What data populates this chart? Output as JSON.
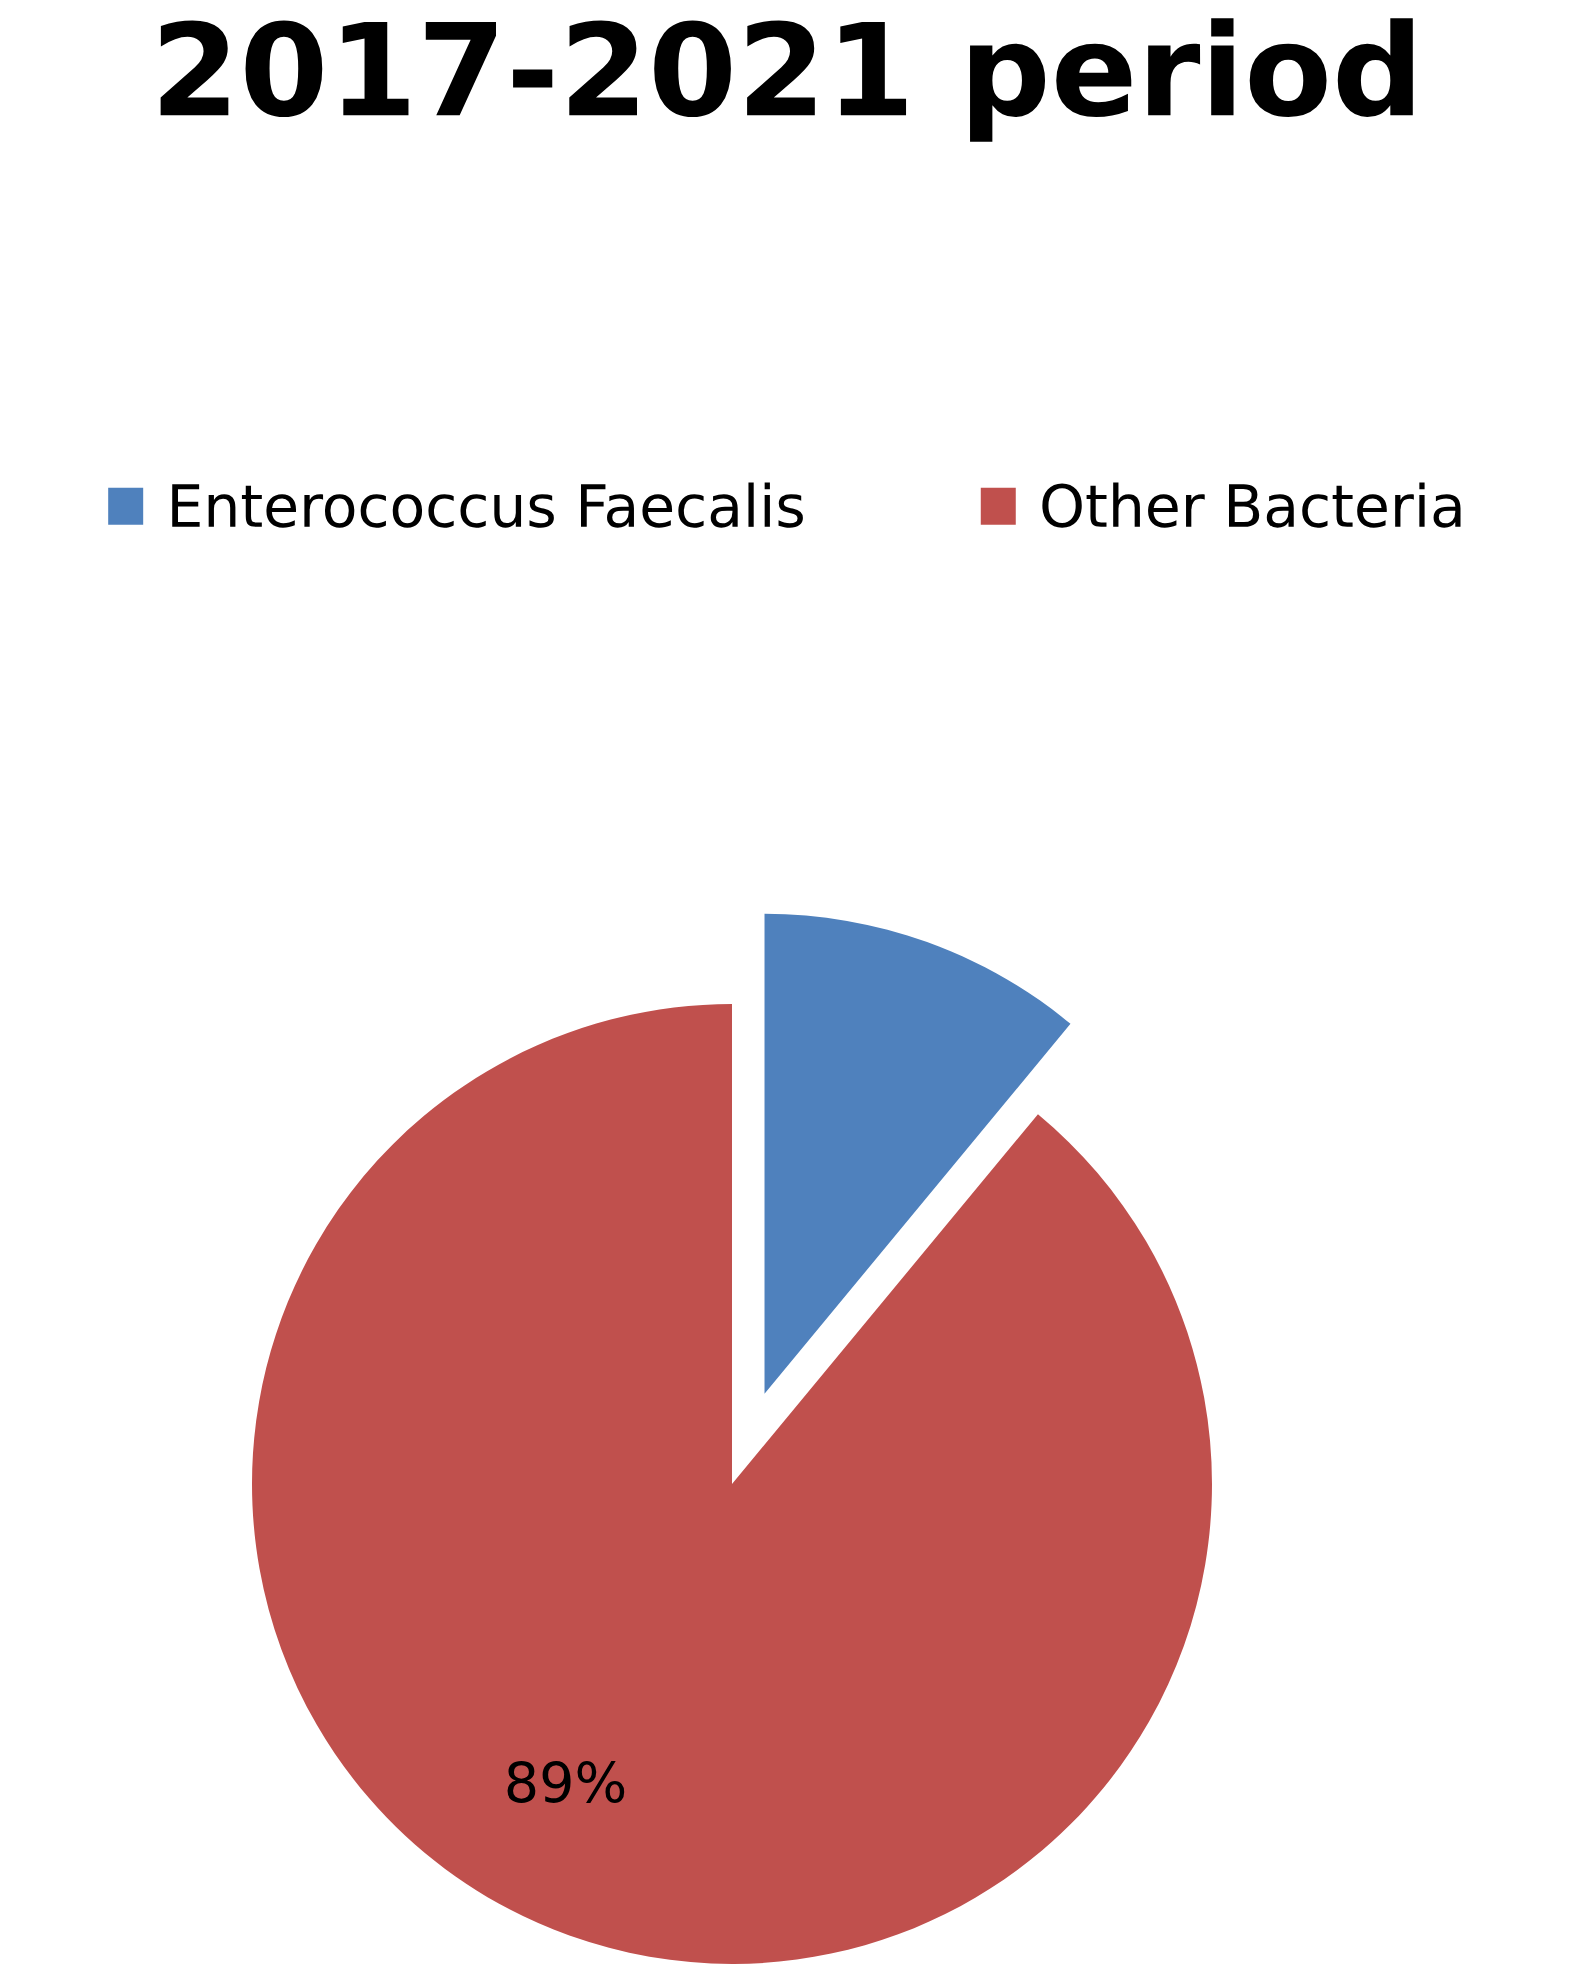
{
  "chart_data": {
    "type": "pie",
    "title": "2017-2021 period",
    "categories": [
      "Enterococcus Faecalis",
      "Other Bacteria"
    ],
    "values": [
      11,
      89
    ],
    "colors": [
      "#4f81bd",
      "#c0504d"
    ],
    "value_labels": [
      null,
      "89%"
    ],
    "legend": "top"
  }
}
